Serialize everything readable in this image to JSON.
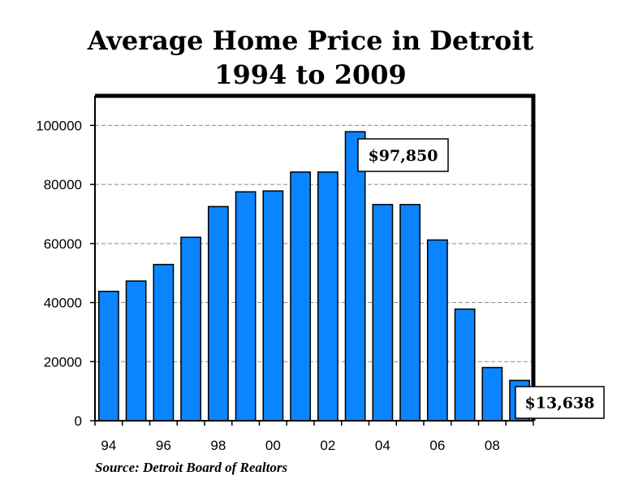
{
  "title_line1": "Average Home Price in Detroit",
  "title_line2": "1994 to 2009",
  "source": "Source: Detroit Board of Realtors",
  "colors": {
    "bar": "#0b84ff",
    "grid": "#888888"
  },
  "chart_data": {
    "type": "bar",
    "title": "Average Home Price in Detroit 1994 to 2009",
    "categories": [
      "1994",
      "1995",
      "1996",
      "1997",
      "1998",
      "1999",
      "2000",
      "2001",
      "2002",
      "2003",
      "2004",
      "2005",
      "2006",
      "2007",
      "2008",
      "2009"
    ],
    "values": [
      43800,
      47300,
      52900,
      62100,
      72500,
      77500,
      77800,
      84200,
      84200,
      97850,
      73200,
      73200,
      61200,
      37800,
      18000,
      13638
    ],
    "x_tick_labels": [
      "94",
      "96",
      "98",
      "00",
      "02",
      "04",
      "06",
      "08"
    ],
    "y_ticks": [
      0,
      20000,
      40000,
      60000,
      80000,
      100000
    ],
    "y_tick_labels": [
      "0",
      "20000",
      "40000",
      "60000",
      "80000",
      "100000"
    ],
    "ylim": [
      0,
      110000
    ],
    "grid": "horizontal dashed",
    "annotations": [
      {
        "text": "$97,850",
        "year": "2003"
      },
      {
        "text": "$13,638",
        "year": "2009"
      }
    ]
  }
}
